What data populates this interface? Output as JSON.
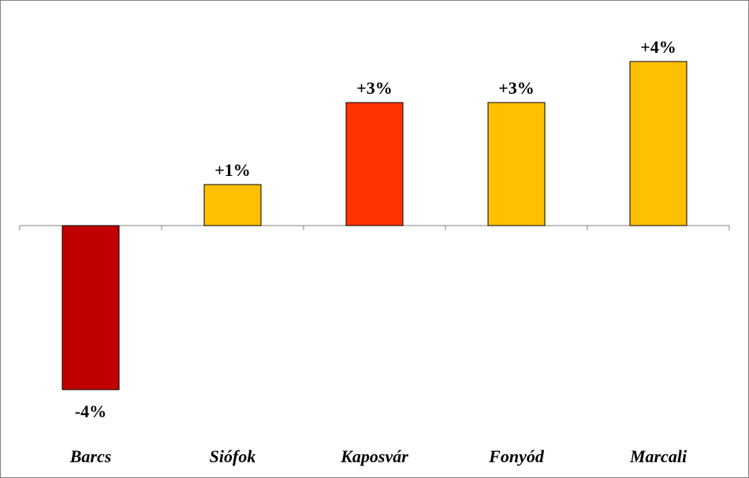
{
  "chart_data": {
    "type": "bar",
    "categories": [
      "Barcs",
      "Siófok",
      "Kaposvár",
      "Fonyód",
      "Marcali"
    ],
    "values": [
      -4,
      1,
      3,
      3,
      4
    ],
    "data_labels": [
      "-4%",
      "+1%",
      "+3%",
      "+3%",
      "+4%"
    ],
    "bar_colors": [
      "#C00000",
      "#FFC000",
      "#FF3300",
      "#FFC000",
      "#FFC000"
    ],
    "title": "",
    "xlabel": "",
    "ylabel": "",
    "ylim": [
      -4,
      4
    ],
    "grid": false,
    "legend": "none"
  },
  "colors": {
    "border": "#808080",
    "bar_outline": "#000000",
    "axis": "#808080"
  }
}
